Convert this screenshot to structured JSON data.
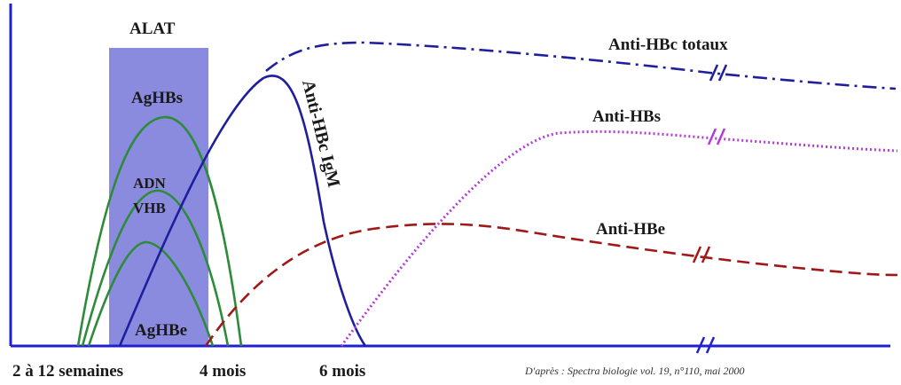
{
  "chart_data": {
    "type": "line",
    "title": "",
    "xlabel": "",
    "ylabel": "",
    "x_tick_labels": [
      "2 à 12 semaines",
      "4 mois",
      "6 mois"
    ],
    "shaded_region_label": "ALAT",
    "source": "D'après : Spectra biologie vol. 19, n°110, mai 2000",
    "series": [
      {
        "name": "AgHBs",
        "color": "#2e8b3a",
        "style": "solid"
      },
      {
        "name": "ADN VHB",
        "color": "#2e8b3a",
        "style": "solid"
      },
      {
        "name": "AgHBe",
        "color": "#2e8b3a",
        "style": "solid"
      },
      {
        "name": "Anti-HBc IgM",
        "color": "#1f1f9e",
        "style": "solid"
      },
      {
        "name": "Anti-HBc totaux",
        "color": "#1f1f9e",
        "style": "dash-dot"
      },
      {
        "name": "Anti-HBs",
        "color": "#b23cd6",
        "style": "dotted"
      },
      {
        "name": "Anti-HBe",
        "color": "#a01818",
        "style": "dashed"
      }
    ],
    "labels": {
      "adn": "ADN",
      "vhb": "VHB"
    },
    "colors": {
      "axis": "#2020d0",
      "shade": "#8888dd"
    }
  }
}
